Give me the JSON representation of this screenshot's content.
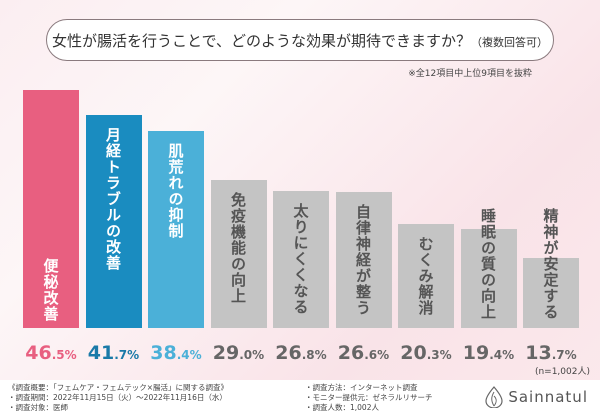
{
  "header": {
    "title": "女性が腸活を行うことで、どのような効果が期待できますか？",
    "title_suffix": "（複数回答可）",
    "note": "※全12項目中上位9項目を抜粋"
  },
  "chart_data": {
    "type": "bar",
    "title": "女性が腸活を行うことで、どのような効果が期待できますか？（複数回答可）",
    "categories": [
      "便秘改善",
      "月経トラブルの改善",
      "肌荒れの抑制",
      "免疫機能の向上",
      "太りにくくなる",
      "自律神経が整う",
      "むくみ解消",
      "睡眠の質の向上",
      "精神が安定する"
    ],
    "values": [
      46.5,
      41.7,
      38.4,
      29.0,
      26.8,
      26.6,
      20.3,
      19.4,
      13.7
    ],
    "value_labels": [
      "46.5",
      "41.7",
      "38.4",
      "29.0",
      "26.8",
      "26.6",
      "20.3",
      "19.4",
      "13.7"
    ],
    "unit": "%",
    "ylim": [
      0,
      46.5
    ],
    "grid": false,
    "sample": "(n=1,002人)",
    "colors": [
      "#e85f80",
      "#1a8cc0",
      "#4bb0d8",
      "#c4c4c4",
      "#c4c4c4",
      "#c4c4c4",
      "#c4c4c4",
      "#c4c4c4",
      "#c4c4c4"
    ],
    "value_colors": [
      "#e85f80",
      "#1a7aa8",
      "#4bb0d8",
      "#666666",
      "#666666",
      "#666666",
      "#666666",
      "#666666",
      "#666666"
    ],
    "label_colors": [
      "#ffffff",
      "#ffffff",
      "#ffffff",
      "#555555",
      "#555555",
      "#555555",
      "#555555",
      "#555555",
      "#555555"
    ]
  },
  "footer": {
    "summary": "《調査概要：「フェムケア・フェムテック×腸活」に関する調査》",
    "period": "・調査期間：2022年11月15日（火）～2022年11月16日（水）",
    "target": "・調査対象：医師",
    "method": "・調査方法：インターネット調査",
    "provider": "・モニター提供元：ゼネラルリサーチ",
    "count": "・調査人数：1,002人",
    "brand": "Sainnatul"
  }
}
